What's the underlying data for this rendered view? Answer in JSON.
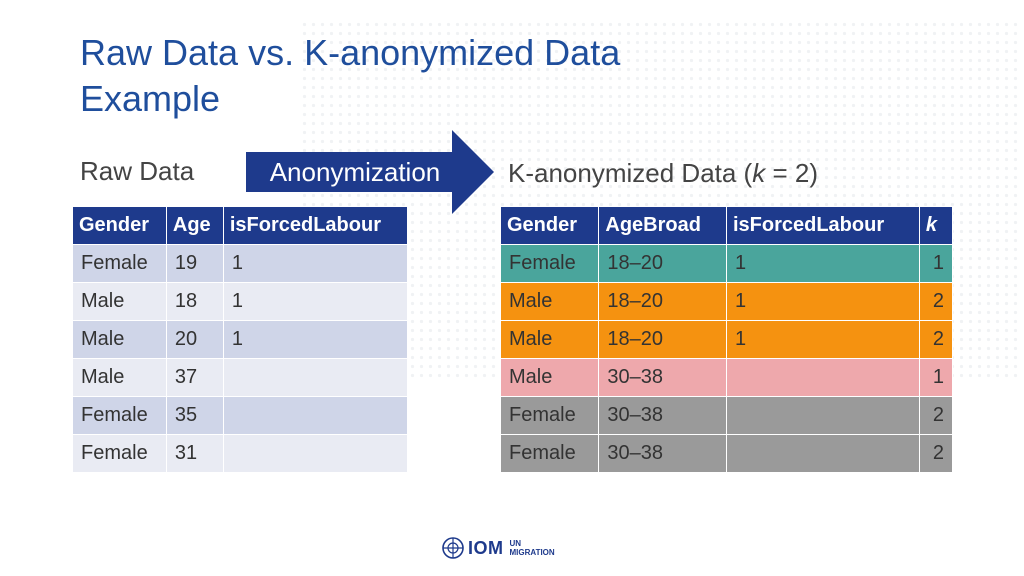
{
  "title_lines": [
    "Raw Data vs. K-anonymized Data",
    "Example"
  ],
  "raw_label": "Raw Data",
  "arrow_label": "Anonymization",
  "k_label_pre": "K-anonymized Data (",
  "k_label_var": "k",
  "k_label_post": " = 2)",
  "raw_table": {
    "headers": [
      "Gender",
      "Age",
      "isForcedLabour"
    ],
    "rows": [
      [
        "Female",
        "19",
        "1"
      ],
      [
        "Male",
        "18",
        "1"
      ],
      [
        "Male",
        "20",
        "1"
      ],
      [
        "Male",
        "37",
        ""
      ],
      [
        "Female",
        "35",
        ""
      ],
      [
        "Female",
        "31",
        ""
      ]
    ]
  },
  "k_table": {
    "headers": [
      "Gender",
      "AgeBroad",
      "isForcedLabour",
      "k"
    ],
    "rows": [
      {
        "cells": [
          "Female",
          "18–20",
          "1",
          "1"
        ],
        "color": "#4aa59c"
      },
      {
        "cells": [
          "Male",
          "18–20",
          "1",
          "2"
        ],
        "color": "#f59210"
      },
      {
        "cells": [
          "Male",
          "18–20",
          "1",
          "2"
        ],
        "color": "#f59210"
      },
      {
        "cells": [
          "Male",
          "30–38",
          "",
          "1"
        ],
        "color": "#eea8ac"
      },
      {
        "cells": [
          "Female",
          "30–38",
          "",
          "2"
        ],
        "color": "#9a9a9a"
      },
      {
        "cells": [
          "Female",
          "30–38",
          "",
          "2"
        ],
        "color": "#9a9a9a"
      }
    ]
  },
  "logo": {
    "text": "IOM",
    "sub1": "UN",
    "sub2": "MIGRATION",
    "icon": "un-emblem-icon"
  },
  "colors": {
    "title": "#1f4e9c",
    "header": "#1e3a8c",
    "arrow": "#1e3a8c"
  }
}
